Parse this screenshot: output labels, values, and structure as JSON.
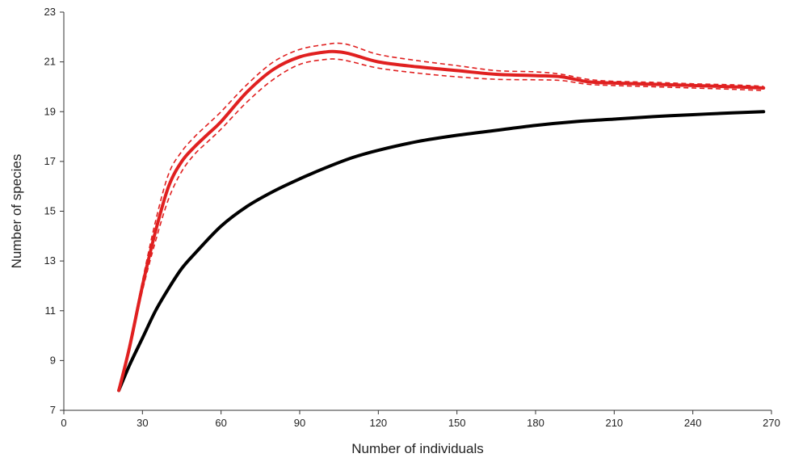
{
  "chart_data": {
    "type": "line",
    "title": "",
    "xlabel": "Number of individuals",
    "ylabel": "Number of species",
    "xlim": [
      0,
      270
    ],
    "ylim": [
      7,
      23
    ],
    "x_ticks": [
      0,
      30,
      60,
      90,
      120,
      150,
      180,
      210,
      240,
      270
    ],
    "y_ticks": [
      7,
      9,
      11,
      13,
      15,
      17,
      19,
      21,
      23
    ],
    "grid": false,
    "legend": "none",
    "series": [
      {
        "color": "#000000",
        "style": "solid",
        "x": [
          21,
          25,
          30,
          35,
          40,
          45,
          50,
          60,
          70,
          80,
          90,
          100,
          110,
          120,
          135,
          150,
          165,
          180,
          195,
          210,
          225,
          240,
          255,
          267
        ],
        "y": [
          7.8,
          8.8,
          9.9,
          11.0,
          11.9,
          12.7,
          13.3,
          14.4,
          15.2,
          15.8,
          16.3,
          16.75,
          17.15,
          17.45,
          17.8,
          18.05,
          18.25,
          18.45,
          18.6,
          18.7,
          18.8,
          18.88,
          18.95,
          19.0
        ]
      },
      {
        "color": "#e02020",
        "style": "solid",
        "x": [
          21,
          25,
          30,
          35,
          40,
          45,
          50,
          55,
          60,
          70,
          80,
          90,
          100,
          105,
          110,
          120,
          135,
          150,
          165,
          180,
          190,
          200,
          210,
          225,
          240,
          255,
          267
        ],
        "y": [
          7.8,
          9.5,
          12.0,
          14.2,
          16.0,
          17.0,
          17.6,
          18.1,
          18.6,
          19.8,
          20.7,
          21.2,
          21.4,
          21.4,
          21.3,
          21.0,
          20.8,
          20.65,
          20.5,
          20.45,
          20.4,
          20.2,
          20.15,
          20.1,
          20.05,
          20.0,
          19.95
        ]
      },
      {
        "color": "#e02020",
        "style": "dashed",
        "x": [
          21,
          25,
          30,
          35,
          40,
          45,
          50,
          55,
          60,
          70,
          80,
          90,
          100,
          105,
          110,
          120,
          135,
          150,
          165,
          180,
          190,
          200,
          210,
          225,
          240,
          255,
          267
        ],
        "y": [
          7.8,
          9.6,
          12.2,
          14.6,
          16.5,
          17.4,
          18.0,
          18.5,
          19.0,
          20.1,
          21.0,
          21.5,
          21.7,
          21.75,
          21.65,
          21.3,
          21.05,
          20.85,
          20.65,
          20.6,
          20.5,
          20.3,
          20.22,
          20.18,
          20.12,
          20.08,
          20.02
        ]
      },
      {
        "color": "#e02020",
        "style": "dashed",
        "x": [
          21,
          25,
          30,
          35,
          40,
          45,
          50,
          55,
          60,
          70,
          80,
          90,
          100,
          105,
          110,
          120,
          135,
          150,
          165,
          180,
          190,
          200,
          210,
          225,
          240,
          255,
          267
        ],
        "y": [
          7.8,
          9.4,
          11.8,
          13.8,
          15.5,
          16.6,
          17.3,
          17.8,
          18.3,
          19.4,
          20.3,
          20.9,
          21.1,
          21.1,
          21.0,
          20.75,
          20.55,
          20.4,
          20.3,
          20.28,
          20.25,
          20.1,
          20.05,
          20.0,
          19.95,
          19.9,
          19.85
        ]
      }
    ]
  }
}
